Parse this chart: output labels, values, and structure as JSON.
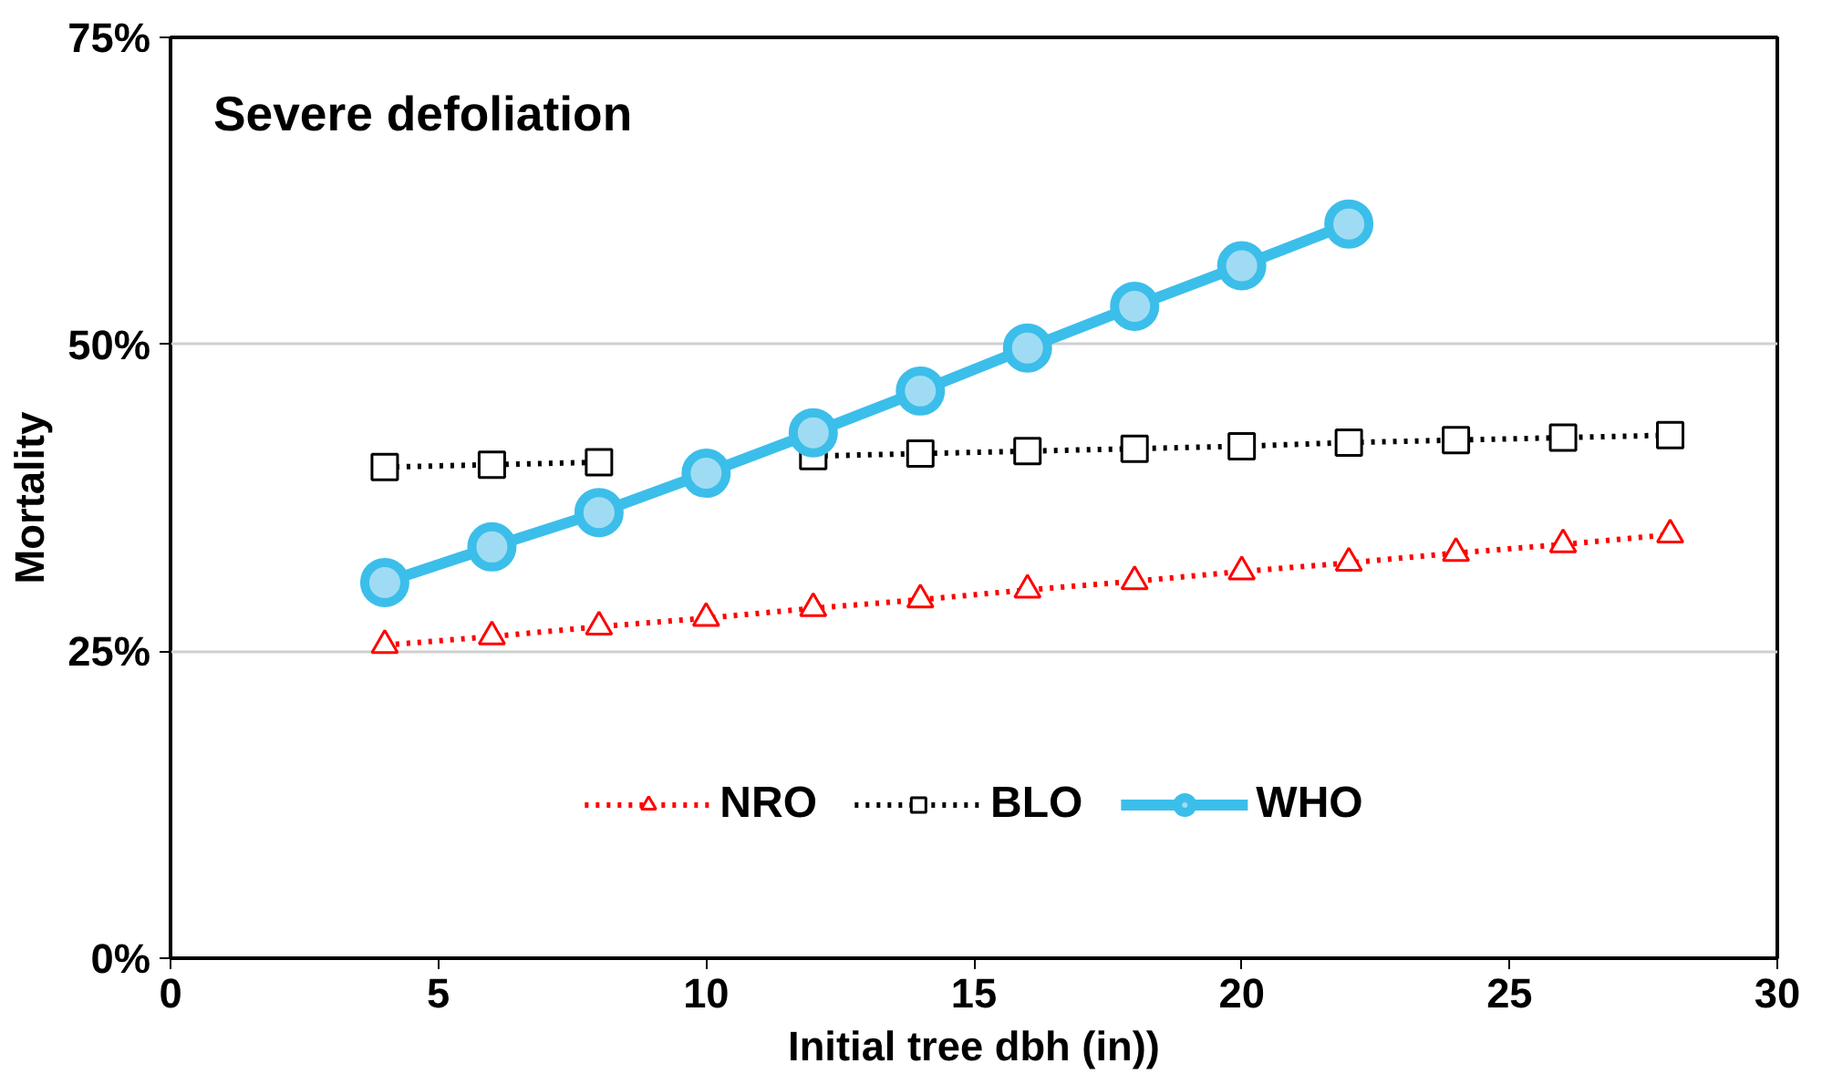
{
  "chart_data": {
    "type": "line",
    "title": "Severe defoliation",
    "xlabel": "Initial tree dbh (in))",
    "ylabel": "Mortality",
    "xlim": [
      0,
      30
    ],
    "xticks": [
      0,
      5,
      10,
      15,
      20,
      25,
      30
    ],
    "ylim": [
      0,
      75
    ],
    "yticks": [
      {
        "value": 0,
        "label": "0%"
      },
      {
        "value": 25,
        "label": "25%"
      },
      {
        "value": 50,
        "label": "50%"
      },
      {
        "value": 75,
        "label": "75%"
      }
    ],
    "grid": "y",
    "legend": "bottom",
    "series": [
      {
        "name": "NRO",
        "color": "#ff0000",
        "marker": "triangle",
        "line_style": "dotted",
        "x": [
          4,
          6,
          8,
          10,
          12,
          14,
          16,
          18,
          20,
          22,
          24,
          26,
          28
        ],
        "values": [
          25.5,
          26.2,
          27,
          27.7,
          28.5,
          29.2,
          30,
          30.7,
          31.5,
          32.2,
          33,
          33.7,
          34.5
        ]
      },
      {
        "name": "BLO",
        "color": "#000000",
        "marker": "square",
        "line_style": "dotted",
        "x": [
          4,
          6,
          8,
          10,
          12,
          14,
          16,
          18,
          20,
          22,
          24,
          26,
          28
        ],
        "values": [
          40.0,
          40.2,
          40.4,
          null,
          40.9,
          41.1,
          41.3,
          41.5,
          41.7,
          42.0,
          42.2,
          42.4,
          42.6
        ]
      },
      {
        "name": "WHO",
        "color": "#3cbeea",
        "marker": "circle",
        "line_style": "solid",
        "x": [
          4,
          6,
          8,
          10,
          12,
          14,
          16,
          18,
          20,
          22
        ],
        "values": [
          30.6,
          33.5,
          36.3,
          39.5,
          42.8,
          46.2,
          49.7,
          53.1,
          56.4,
          59.8
        ]
      }
    ]
  }
}
